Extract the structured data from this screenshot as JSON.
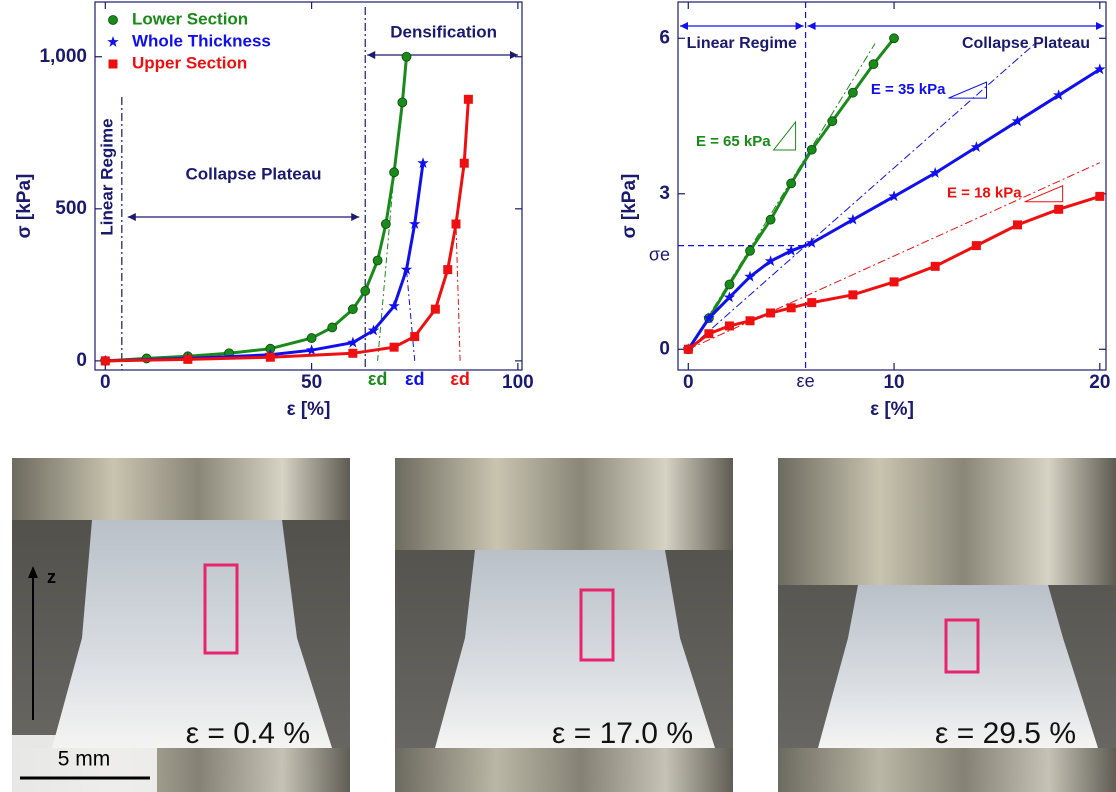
{
  "chart_data": [
    {
      "type": "line",
      "x_label": "ε [%]",
      "y_label": "σ [kPa]",
      "xlim": [
        -2.5,
        101
      ],
      "ylim": [
        -30,
        1180
      ],
      "xticks": [
        0,
        50,
        100
      ],
      "yticks": [
        0,
        500,
        {
          "value": 1000,
          "label": "1,000"
        }
      ],
      "series": [
        {
          "name": "Lower Section",
          "color": "#1a8a1a",
          "marker": "circle",
          "x": [
            0,
            10,
            20,
            30,
            40,
            50,
            55,
            60,
            63,
            66,
            68,
            70,
            72,
            73
          ],
          "values": [
            0,
            8,
            15,
            25,
            40,
            75,
            110,
            170,
            230,
            330,
            450,
            620,
            850,
            1000
          ]
        },
        {
          "name": "Whole Thickness",
          "color": "#1010ee",
          "marker": "star",
          "x": [
            0,
            20,
            40,
            50,
            60,
            65,
            70,
            73,
            75,
            77
          ],
          "values": [
            0,
            8,
            20,
            35,
            60,
            100,
            180,
            300,
            450,
            650
          ]
        },
        {
          "name": "Upper Section",
          "color": "#ee1010",
          "marker": "square",
          "x": [
            0,
            20,
            40,
            60,
            70,
            75,
            80,
            83,
            85,
            87,
            88
          ],
          "values": [
            0,
            5,
            12,
            25,
            45,
            80,
            170,
            300,
            450,
            650,
            860
          ]
        }
      ],
      "regime_bounds": [
        4,
        63
      ],
      "regime_labels": [
        "Linear Regime",
        "Collapse Plateau",
        "Densification"
      ],
      "onsets": [
        {
          "value": 66,
          "label": "εd"
        },
        {
          "value": 75,
          "label": "εd"
        },
        {
          "value": 86,
          "label": "εd"
        }
      ]
    },
    {
      "type": "line",
      "x_label": "ε [%]",
      "y_label": "σ [kPa]",
      "xlim": [
        -0.5,
        20.3
      ],
      "ylim": [
        -0.4,
        6.7
      ],
      "xticks": [
        0,
        10,
        20
      ],
      "yticks": [
        0,
        3,
        6
      ],
      "series": [
        {
          "name": "Lower Section",
          "color": "#1a8a1a",
          "marker": "circle",
          "x": [
            0,
            1,
            2,
            3,
            4,
            5,
            6,
            7,
            8,
            9,
            10
          ],
          "values": [
            0,
            0.6,
            1.25,
            1.9,
            2.5,
            3.2,
            3.85,
            4.4,
            4.95,
            5.5,
            6.0
          ]
        },
        {
          "name": "Whole Thickness",
          "color": "#1010ee",
          "marker": "star",
          "x": [
            0,
            1,
            2,
            3,
            4,
            5,
            6,
            8,
            10,
            12,
            14,
            16,
            18,
            20
          ],
          "values": [
            0,
            0.6,
            1.0,
            1.4,
            1.7,
            1.9,
            2.05,
            2.5,
            2.95,
            3.4,
            3.9,
            4.4,
            4.9,
            5.4
          ]
        },
        {
          "name": "Upper Section",
          "color": "#ee1010",
          "marker": "square",
          "x": [
            0,
            1,
            2,
            3,
            4,
            5,
            6,
            8,
            10,
            12,
            14,
            16,
            18,
            20
          ],
          "values": [
            0,
            0.3,
            0.45,
            0.55,
            0.7,
            0.8,
            0.9,
            1.05,
            1.3,
            1.6,
            2.0,
            2.4,
            2.7,
            2.95
          ]
        }
      ],
      "moduli": [
        {
          "value": 65,
          "label": "E = 65 kPa"
        },
        {
          "value": 35,
          "label": "E = 35 kPa"
        },
        {
          "value": 18,
          "label": "E = 18 kPa"
        }
      ],
      "epsilon_e": {
        "value": 5.7,
        "label": "εe"
      },
      "sigma_e": {
        "value": 2.0,
        "label": "σe"
      },
      "regime_labels": [
        "Linear Regime",
        "Collapse Plateau"
      ]
    }
  ],
  "photos": [
    {
      "label": "ε = 0.4 %"
    },
    {
      "label": "ε = 17.0 %"
    },
    {
      "label": "ε = 29.5 %"
    }
  ],
  "scale_bar": "5 mm",
  "direction_label": "z"
}
